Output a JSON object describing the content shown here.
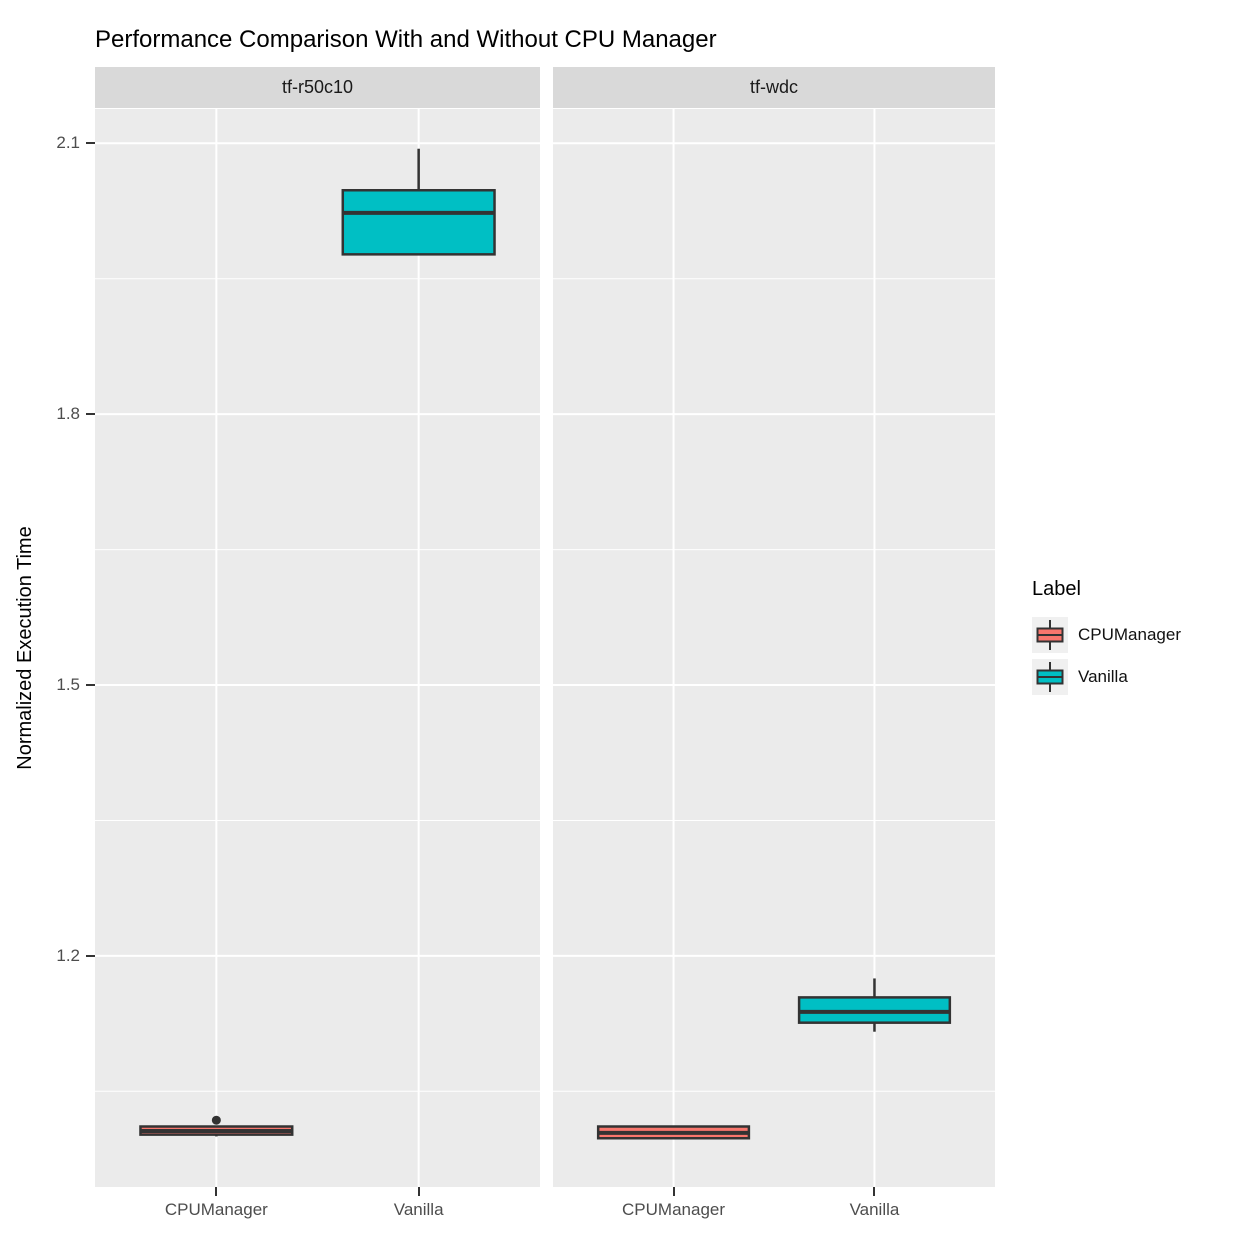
{
  "chart_data": {
    "type": "boxplot",
    "title": "Performance Comparison With and Without CPU Manager",
    "ylabel": "Normalized Execution Time",
    "xlabel": "",
    "categories": [
      "CPUManager",
      "Vanilla"
    ],
    "yticks": [
      2.1,
      1.8,
      1.5,
      1.2
    ],
    "yticks_minor": [
      1.95,
      1.65,
      1.35,
      1.05
    ],
    "ylim": [
      0.944,
      2.138
    ],
    "grid": true,
    "legend_position": "right",
    "series_colors": {
      "CPUManager": "#F8766D",
      "Vanilla": "#00BFC4"
    },
    "facets": [
      {
        "label": "tf-r50c10",
        "boxes": [
          {
            "category": "CPUManager",
            "color_key": "CPUManager",
            "whisker_low": 1.0,
            "q1": 1.002,
            "median": 1.006,
            "q3": 1.011,
            "whisker_high": 1.011,
            "outliers": [
              1.018
            ]
          },
          {
            "category": "Vanilla",
            "color_key": "Vanilla",
            "whisker_low": 1.977,
            "q1": 1.977,
            "median": 2.023,
            "q3": 2.048,
            "whisker_high": 2.094,
            "outliers": []
          }
        ]
      },
      {
        "label": "tf-wdc",
        "boxes": [
          {
            "category": "CPUManager",
            "color_key": "CPUManager",
            "whisker_low": 0.997,
            "q1": 0.998,
            "median": 1.004,
            "q3": 1.011,
            "whisker_high": 1.011,
            "outliers": []
          },
          {
            "category": "Vanilla",
            "color_key": "Vanilla",
            "whisker_low": 1.116,
            "q1": 1.126,
            "median": 1.138,
            "q3": 1.154,
            "whisker_high": 1.175,
            "outliers": []
          }
        ]
      }
    ]
  },
  "legend": {
    "title": "Label",
    "entries": [
      {
        "label": "CPUManager",
        "color": "#F8766D"
      },
      {
        "label": "Vanilla",
        "color": "#00BFC4"
      }
    ]
  },
  "colors": {
    "panel_bg": "#EBEBEB",
    "strip_bg": "#D9D9D9",
    "gridline": "#FFFFFF",
    "box_stroke": "#333333",
    "axis_text": "#4D4D4D",
    "title_text": "#000000",
    "legend_key_bg": "#F0F0F0"
  }
}
